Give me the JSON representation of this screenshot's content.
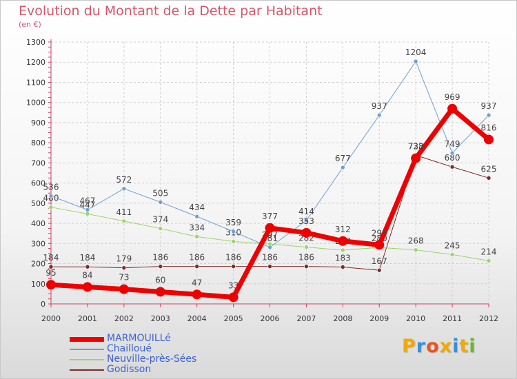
{
  "title": "Evolution du Montant de la Dette par Habitant",
  "subtitle": "(en €)",
  "logo_text": "Proxiti",
  "logo_colors": [
    "#f2a900",
    "#3a8fd6",
    "#e8551f",
    "#f2a900",
    "#3a8fd6",
    "#f2a900",
    "#6bb82e"
  ],
  "chart_data": {
    "type": "line",
    "x": [
      2000,
      2001,
      2002,
      2003,
      2004,
      2005,
      2006,
      2007,
      2008,
      2009,
      2010,
      2011,
      2012
    ],
    "ylim": [
      0,
      1300
    ],
    "yticks": [
      0,
      100,
      200,
      300,
      400,
      500,
      600,
      700,
      800,
      900,
      1000,
      1100,
      1200,
      1300
    ],
    "grid": true,
    "legend_position": "bottom-left",
    "series": [
      {
        "name": "MARMOUILLé",
        "color": "#ee0000",
        "width": 7,
        "marker": 7,
        "values": [
          95,
          84,
          73,
          60,
          47,
          33,
          377,
          353,
          312,
          293,
          723,
          969,
          816
        ],
        "labels": [
          "95",
          "84",
          "73",
          "60",
          "47",
          "33",
          "377",
          "353",
          "312",
          "293",
          "723",
          "969",
          "816"
        ]
      },
      {
        "name": "Chailloué",
        "color": "#6e9fd0",
        "width": 1,
        "marker": 3,
        "values": [
          536,
          467,
          572,
          505,
          434,
          359,
          281,
          414,
          677,
          937,
          1204,
          749,
          937
        ],
        "labels": [
          "536",
          "467",
          "572",
          "505",
          "434",
          "359",
          "281",
          "414",
          "677",
          "937",
          "1204",
          "749",
          "937"
        ]
      },
      {
        "name": "Neuville-près-Sées",
        "color": "#9bd46b",
        "width": 1,
        "marker": 3,
        "values": [
          480,
          447,
          411,
          374,
          334,
          310,
          297,
          282,
          267,
          280,
          268,
          245,
          214
        ],
        "labels": [
          "480",
          "447",
          "411",
          "374",
          "334",
          "310",
          "297",
          "282",
          "267",
          "280",
          "268",
          "245",
          "214"
        ]
      },
      {
        "name": "Godisson",
        "color": "#7a2b2b",
        "width": 1,
        "marker": 3,
        "values": [
          184,
          184,
          179,
          186,
          186,
          186,
          186,
          186,
          183,
          167,
          738,
          680,
          625
        ],
        "labels": [
          "184",
          "184",
          "179",
          "186",
          "186",
          "186",
          "186",
          "186",
          "183",
          "167",
          "738",
          "680",
          "625"
        ]
      }
    ]
  }
}
